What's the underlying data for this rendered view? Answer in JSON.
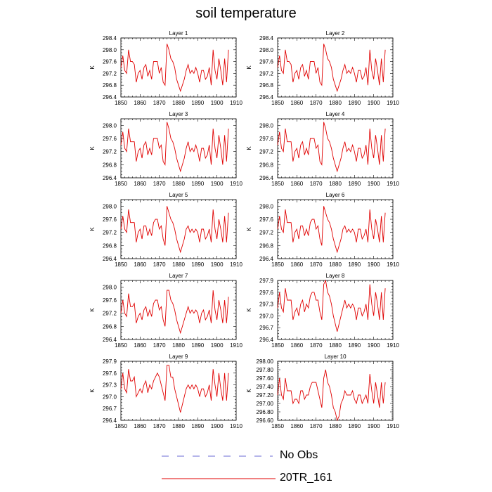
{
  "title": "soil temperature",
  "legend": {
    "entries": [
      {
        "label": "No Obs",
        "color": "#6b6bd6",
        "style": "dashed"
      },
      {
        "label": "20TR_161",
        "color": "#e00000",
        "style": "solid"
      }
    ]
  },
  "chart_data": [
    {
      "type": "line",
      "title": "Layer 1",
      "ylabel": "K",
      "xlim": [
        1850,
        1910
      ],
      "ylim": [
        296.4,
        298.4
      ],
      "yticks": [
        "298.4",
        "298.0",
        "297.6",
        "297.2",
        "296.8",
        "296.4"
      ],
      "xticks": [
        "1850",
        "1860",
        "1870",
        "1880",
        "1890",
        "1900",
        "1910"
      ],
      "series": [
        {
          "color": "#e00000",
          "x_start": 1850,
          "x_step": 1,
          "values": [
            297.4,
            297.8,
            297.3,
            297.2,
            298.0,
            297.6,
            297.6,
            297.5,
            296.9,
            297.2,
            297.3,
            297.0,
            297.4,
            297.5,
            297.1,
            297.3,
            297.0,
            297.6,
            297.6,
            297.6,
            297.2,
            297.4,
            296.9,
            296.8,
            298.2,
            298.0,
            297.7,
            297.6,
            297.4,
            297.0,
            296.8,
            296.6,
            296.8,
            297.0,
            297.3,
            297.5,
            297.2,
            297.3,
            297.2,
            297.4,
            297.2,
            296.9,
            297.3,
            297.3,
            297.0,
            297.1,
            297.4,
            296.8,
            298.0,
            297.3,
            297.0,
            297.7,
            297.3,
            296.8,
            297.7,
            296.9,
            298.0
          ]
        }
      ]
    },
    {
      "type": "line",
      "title": "Layer 2",
      "ylabel": "K",
      "xlim": [
        1850,
        1910
      ],
      "ylim": [
        296.4,
        298.4
      ],
      "yticks": [
        "298.4",
        "298.0",
        "297.6",
        "297.2",
        "296.8",
        "296.4"
      ],
      "xticks": [
        "1850",
        "1860",
        "1870",
        "1880",
        "1890",
        "1900",
        "1910"
      ],
      "series": [
        {
          "color": "#e00000",
          "x_start": 1850,
          "x_step": 1,
          "values": [
            297.4,
            297.8,
            297.3,
            297.2,
            298.0,
            297.6,
            297.6,
            297.5,
            296.9,
            297.2,
            297.3,
            297.0,
            297.4,
            297.5,
            297.1,
            297.3,
            297.0,
            297.6,
            297.6,
            297.6,
            297.2,
            297.4,
            296.9,
            296.8,
            298.2,
            298.0,
            297.7,
            297.6,
            297.4,
            297.0,
            296.8,
            296.6,
            296.8,
            297.0,
            297.3,
            297.5,
            297.2,
            297.3,
            297.2,
            297.4,
            297.2,
            296.9,
            297.3,
            297.3,
            297.0,
            297.1,
            297.4,
            296.8,
            298.0,
            297.3,
            297.0,
            297.7,
            297.3,
            296.8,
            297.7,
            296.9,
            298.0
          ]
        }
      ]
    },
    {
      "type": "line",
      "title": "Layer 3",
      "ylabel": "K",
      "xlim": [
        1850,
        1910
      ],
      "ylim": [
        296.4,
        298.2
      ],
      "yticks": [
        "298.0",
        "297.6",
        "297.2",
        "296.8",
        "296.4"
      ],
      "xticks": [
        "1850",
        "1860",
        "1870",
        "1880",
        "1890",
        "1900",
        "1910"
      ],
      "series": [
        {
          "color": "#e00000",
          "x_start": 1850,
          "x_step": 1,
          "values": [
            297.4,
            297.8,
            297.3,
            297.2,
            297.9,
            297.5,
            297.5,
            297.5,
            296.9,
            297.2,
            297.3,
            297.0,
            297.4,
            297.5,
            297.1,
            297.3,
            297.1,
            297.6,
            297.6,
            297.6,
            297.3,
            297.4,
            296.9,
            296.8,
            298.1,
            297.9,
            297.6,
            297.5,
            297.3,
            297.0,
            296.8,
            296.6,
            296.8,
            297.0,
            297.3,
            297.5,
            297.2,
            297.3,
            297.2,
            297.4,
            297.2,
            296.9,
            297.3,
            297.3,
            297.0,
            297.1,
            297.4,
            296.8,
            297.9,
            297.3,
            297.0,
            297.7,
            297.3,
            296.8,
            297.7,
            296.9,
            297.9
          ]
        }
      ]
    },
    {
      "type": "line",
      "title": "Layer 4",
      "ylabel": "K",
      "xlim": [
        1850,
        1910
      ],
      "ylim": [
        296.4,
        298.2
      ],
      "yticks": [
        "298.0",
        "297.6",
        "297.2",
        "296.8",
        "296.4"
      ],
      "xticks": [
        "1850",
        "1860",
        "1870",
        "1880",
        "1890",
        "1900",
        "1910"
      ],
      "series": [
        {
          "color": "#e00000",
          "x_start": 1850,
          "x_step": 1,
          "values": [
            297.4,
            297.8,
            297.3,
            297.2,
            297.9,
            297.5,
            297.5,
            297.5,
            296.9,
            297.2,
            297.3,
            297.0,
            297.4,
            297.5,
            297.1,
            297.3,
            297.1,
            297.6,
            297.6,
            297.6,
            297.3,
            297.4,
            296.9,
            296.8,
            298.1,
            297.9,
            297.6,
            297.5,
            297.3,
            297.0,
            296.8,
            296.6,
            296.8,
            297.0,
            297.3,
            297.5,
            297.2,
            297.3,
            297.2,
            297.4,
            297.2,
            296.9,
            297.3,
            297.3,
            297.0,
            297.1,
            297.4,
            296.8,
            297.9,
            297.3,
            297.0,
            297.7,
            297.3,
            296.8,
            297.7,
            296.9,
            297.9
          ]
        }
      ]
    },
    {
      "type": "line",
      "title": "Layer 5",
      "ylabel": "K",
      "xlim": [
        1850,
        1910
      ],
      "ylim": [
        296.4,
        298.2
      ],
      "yticks": [
        "298.0",
        "297.6",
        "297.2",
        "296.8",
        "296.4"
      ],
      "xticks": [
        "1850",
        "1860",
        "1870",
        "1880",
        "1890",
        "1900",
        "1910"
      ],
      "series": [
        {
          "color": "#e00000",
          "x_start": 1850,
          "x_step": 1,
          "values": [
            297.3,
            297.7,
            297.3,
            297.2,
            297.9,
            297.5,
            297.5,
            297.5,
            296.9,
            297.2,
            297.3,
            297.0,
            297.4,
            297.4,
            297.1,
            297.3,
            297.1,
            297.5,
            297.6,
            297.6,
            297.3,
            297.4,
            297.0,
            296.8,
            298.0,
            297.8,
            297.6,
            297.5,
            297.3,
            297.0,
            296.8,
            296.6,
            296.8,
            297.0,
            297.3,
            297.4,
            297.2,
            297.3,
            297.2,
            297.3,
            297.2,
            296.9,
            297.3,
            297.3,
            297.0,
            297.1,
            297.3,
            296.9,
            297.9,
            297.3,
            297.0,
            297.6,
            297.3,
            296.9,
            297.7,
            296.9,
            297.8
          ]
        }
      ]
    },
    {
      "type": "line",
      "title": "Layer 6",
      "ylabel": "K",
      "xlim": [
        1850,
        1910
      ],
      "ylim": [
        296.4,
        298.2
      ],
      "yticks": [
        "298.0",
        "297.6",
        "297.2",
        "296.8",
        "296.4"
      ],
      "xticks": [
        "1850",
        "1860",
        "1870",
        "1880",
        "1890",
        "1900",
        "1910"
      ],
      "series": [
        {
          "color": "#e00000",
          "x_start": 1850,
          "x_step": 1,
          "values": [
            297.3,
            297.7,
            297.3,
            297.2,
            297.9,
            297.5,
            297.5,
            297.5,
            296.9,
            297.2,
            297.3,
            297.0,
            297.4,
            297.4,
            297.1,
            297.3,
            297.1,
            297.5,
            297.6,
            297.6,
            297.3,
            297.4,
            297.0,
            296.8,
            298.0,
            297.8,
            297.6,
            297.5,
            297.3,
            297.0,
            296.8,
            296.6,
            296.8,
            297.0,
            297.3,
            297.4,
            297.2,
            297.3,
            297.2,
            297.3,
            297.2,
            296.9,
            297.3,
            297.3,
            297.0,
            297.1,
            297.3,
            296.9,
            297.9,
            297.3,
            297.0,
            297.6,
            297.3,
            296.9,
            297.7,
            296.9,
            297.8
          ]
        }
      ]
    },
    {
      "type": "line",
      "title": "Layer 7",
      "ylabel": "K",
      "xlim": [
        1850,
        1910
      ],
      "ylim": [
        296.4,
        298.2
      ],
      "yticks": [
        "298.0",
        "297.6",
        "297.2",
        "296.8",
        "296.4"
      ],
      "xticks": [
        "1850",
        "1860",
        "1870",
        "1880",
        "1890",
        "1900",
        "1910"
      ],
      "series": [
        {
          "color": "#e00000",
          "x_start": 1850,
          "x_step": 1,
          "values": [
            297.2,
            297.6,
            297.2,
            297.1,
            297.8,
            297.4,
            297.4,
            297.5,
            296.9,
            297.1,
            297.2,
            297.0,
            297.3,
            297.4,
            297.1,
            297.3,
            297.1,
            297.5,
            297.6,
            297.6,
            297.3,
            297.4,
            297.0,
            296.8,
            297.9,
            297.9,
            297.6,
            297.5,
            297.3,
            297.0,
            296.8,
            296.6,
            296.8,
            297.0,
            297.2,
            297.4,
            297.2,
            297.3,
            297.2,
            297.3,
            297.2,
            296.9,
            297.2,
            297.3,
            297.0,
            297.1,
            297.3,
            296.9,
            297.9,
            297.3,
            297.0,
            297.6,
            297.3,
            296.9,
            297.6,
            296.9,
            297.7
          ]
        }
      ]
    },
    {
      "type": "line",
      "title": "Layer 8",
      "ylabel": "K",
      "xlim": [
        1850,
        1910
      ],
      "ylim": [
        296.4,
        297.9
      ],
      "yticks": [
        "297.9",
        "297.6",
        "297.3",
        "297.0",
        "296.7",
        "296.4"
      ],
      "xticks": [
        "1850",
        "1860",
        "1870",
        "1880",
        "1890",
        "1900",
        "1910"
      ],
      "series": [
        {
          "color": "#e00000",
          "x_start": 1850,
          "x_step": 1,
          "values": [
            297.2,
            297.6,
            297.2,
            297.1,
            297.7,
            297.4,
            297.4,
            297.4,
            296.9,
            297.1,
            297.2,
            297.0,
            297.3,
            297.4,
            297.1,
            297.3,
            297.2,
            297.5,
            297.6,
            297.6,
            297.4,
            297.4,
            297.1,
            296.9,
            297.8,
            297.9,
            297.6,
            297.5,
            297.3,
            297.0,
            296.8,
            296.6,
            296.8,
            297.0,
            297.2,
            297.4,
            297.2,
            297.3,
            297.2,
            297.3,
            297.2,
            296.9,
            297.2,
            297.2,
            297.0,
            297.1,
            297.3,
            296.9,
            297.8,
            297.3,
            297.0,
            297.6,
            297.3,
            296.9,
            297.6,
            296.9,
            297.7
          ]
        }
      ]
    },
    {
      "type": "line",
      "title": "Layer 9",
      "ylabel": "K",
      "xlim": [
        1850,
        1910
      ],
      "ylim": [
        296.4,
        297.9
      ],
      "yticks": [
        "297.9",
        "297.6",
        "297.3",
        "297.0",
        "296.7",
        "296.4"
      ],
      "xticks": [
        "1850",
        "1860",
        "1870",
        "1880",
        "1890",
        "1900",
        "1910"
      ],
      "series": [
        {
          "color": "#e00000",
          "x_start": 1850,
          "x_step": 1,
          "values": [
            297.2,
            297.6,
            297.2,
            297.1,
            297.7,
            297.4,
            297.4,
            297.5,
            297.0,
            297.1,
            297.2,
            297.1,
            297.3,
            297.4,
            297.1,
            297.3,
            297.2,
            297.4,
            297.5,
            297.6,
            297.5,
            297.3,
            297.1,
            296.9,
            297.8,
            297.8,
            297.5,
            297.5,
            297.2,
            297.0,
            296.8,
            296.6,
            296.8,
            297.0,
            297.2,
            297.3,
            297.2,
            297.3,
            297.2,
            297.3,
            297.2,
            297.0,
            297.2,
            297.2,
            297.0,
            297.1,
            297.3,
            296.9,
            297.7,
            297.3,
            297.0,
            297.6,
            297.2,
            296.9,
            297.6,
            296.9,
            297.6
          ]
        }
      ]
    },
    {
      "type": "line",
      "title": "Layer 10",
      "ylabel": "K",
      "xlim": [
        1850,
        1910
      ],
      "ylim": [
        296.6,
        298.0
      ],
      "yticks": [
        "298.00",
        "297.80",
        "297.60",
        "297.40",
        "297.20",
        "297.00",
        "296.80",
        "296.60"
      ],
      "xticks": [
        "1850",
        "1860",
        "1870",
        "1880",
        "1890",
        "1900",
        "1910"
      ],
      "series": [
        {
          "color": "#e00000",
          "x_start": 1850,
          "x_step": 1,
          "values": [
            297.2,
            297.6,
            297.2,
            297.1,
            297.6,
            297.3,
            297.3,
            297.3,
            297.0,
            297.1,
            297.1,
            297.0,
            297.3,
            297.3,
            297.1,
            297.2,
            297.2,
            297.4,
            297.5,
            297.5,
            297.5,
            297.3,
            297.1,
            296.9,
            297.6,
            297.8,
            297.5,
            297.4,
            297.2,
            296.9,
            296.8,
            296.6,
            296.7,
            297.0,
            297.1,
            297.3,
            297.2,
            297.2,
            297.2,
            297.3,
            297.1,
            297.0,
            297.2,
            297.2,
            297.0,
            297.1,
            297.2,
            297.0,
            297.7,
            297.3,
            297.0,
            297.5,
            297.2,
            296.9,
            297.5,
            297.0,
            297.5
          ]
        }
      ]
    }
  ]
}
